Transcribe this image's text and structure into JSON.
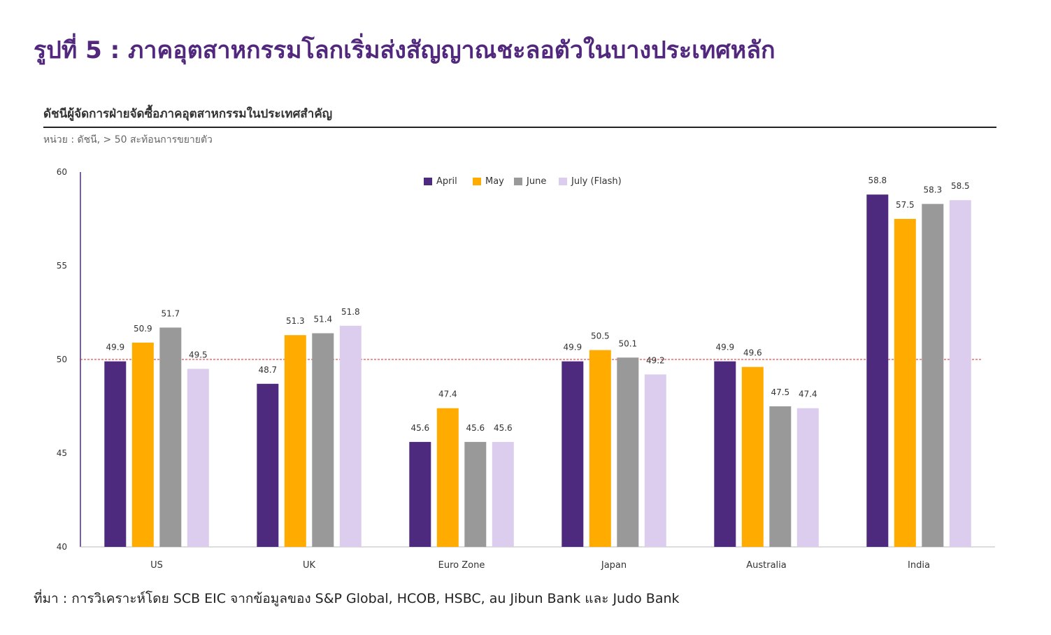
{
  "figure": {
    "title": "รูปที่ 5 : ภาคอุตสาหกรรมโลกเริ่มส่งสัญญาณชะลอตัวในบางประเทศหลัก",
    "source": "ที่มา : การวิเคราะห์โดย SCB EIC จากข้อมูลของ S&P Global, HCOB, HSBC, au Jibun Bank และ Judo Bank"
  },
  "chart_data": {
    "type": "bar",
    "title": "ดัชนีผู้จัดการฝ่ายจัดซื้อภาคอุตสาหกรรมในประเทศสำคัญ",
    "subtitle": "หน่วย : ดัชนี, > 50 สะท้อนการขยายตัว",
    "categories": [
      "US",
      "UK",
      "Euro Zone",
      "Japan",
      "Australia",
      "India"
    ],
    "series": [
      {
        "name": "April",
        "color": "#4e2a7f",
        "values": [
          49.9,
          48.7,
          45.6,
          49.9,
          49.9,
          58.8
        ]
      },
      {
        "name": "May",
        "color": "#ffab00",
        "values": [
          50.9,
          51.3,
          47.4,
          50.5,
          49.6,
          57.5
        ]
      },
      {
        "name": "June",
        "color": "#999999",
        "values": [
          51.7,
          51.4,
          45.6,
          50.1,
          47.5,
          58.3
        ]
      },
      {
        "name": "July (Flash)",
        "color": "#dccdef",
        "values": [
          49.5,
          51.8,
          45.6,
          49.2,
          47.4,
          58.5
        ]
      }
    ],
    "ylim": [
      40,
      60
    ],
    "yticks": [
      40,
      45,
      50,
      55,
      60
    ],
    "reference_line": {
      "value": 50,
      "color": "#e02020",
      "style": "dashed"
    },
    "legend": "top-center",
    "grid": false
  }
}
